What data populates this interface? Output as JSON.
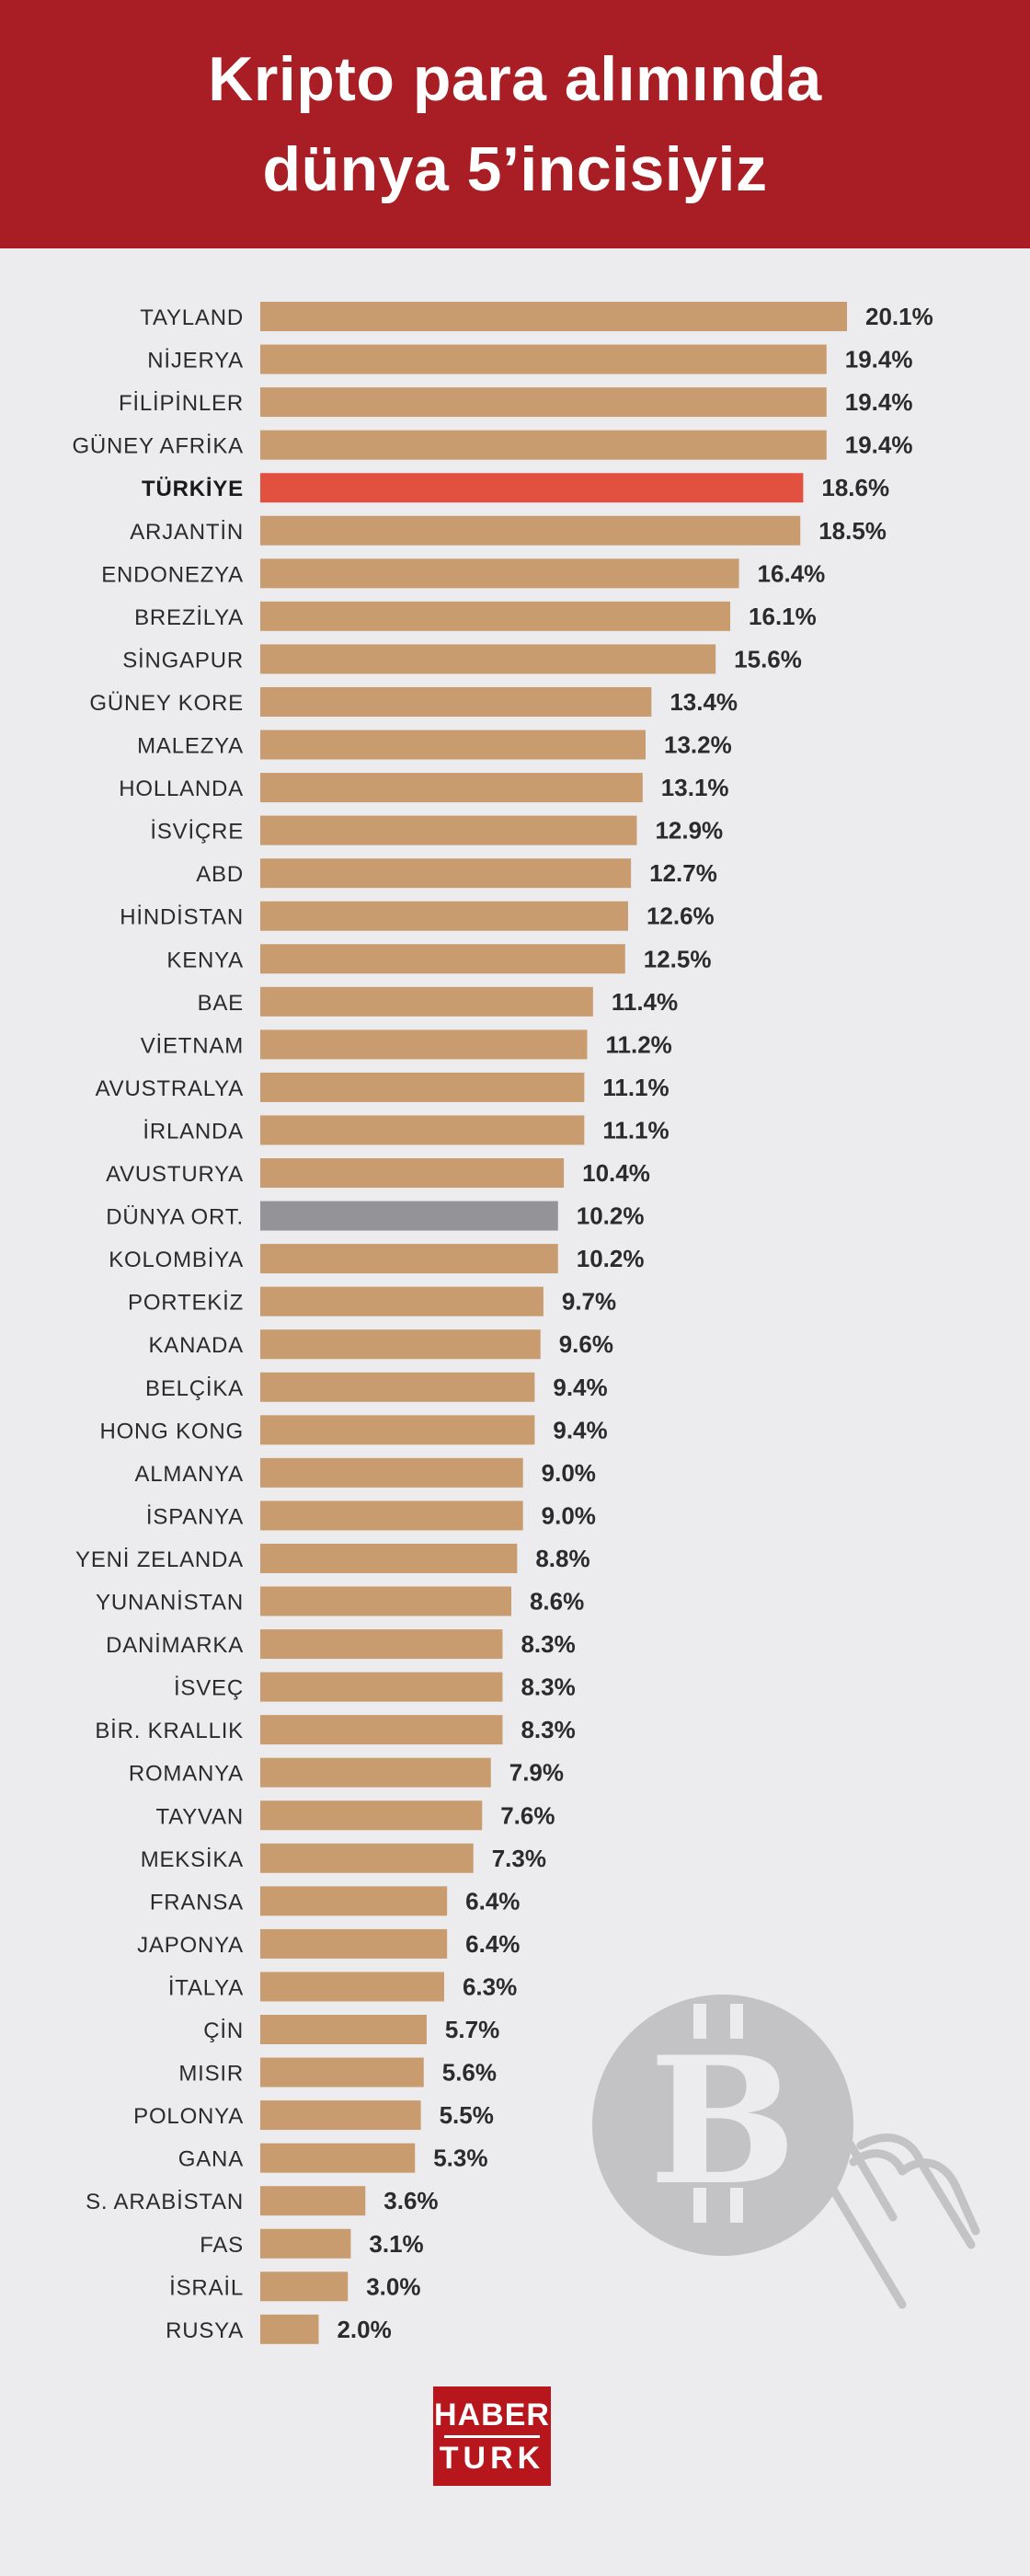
{
  "header": {
    "title_line1": "Kripto para alımında",
    "title_line2": "dünya 5’incisiyiz"
  },
  "logo": {
    "line1": "HABER",
    "line2": "TURK"
  },
  "colors": {
    "header_bg": "#a81e24",
    "bar_default": "#c89c6e",
    "bar_highlight": "#e2503f",
    "bar_average": "#939398",
    "background": "#ececee"
  },
  "icons": [
    "bitcoin-coin-icon",
    "hand-tap-icon"
  ],
  "chart_data": {
    "type": "bar",
    "orientation": "horizontal",
    "title": "Kripto para alımında dünya 5’incisiyiz",
    "value_suffix": "%",
    "highlight": "TÜRKİYE",
    "average": "DÜNYA ORT.",
    "grid": false,
    "legend": "none",
    "xlim": [
      0,
      20.1
    ],
    "categories": [
      "TAYLAND",
      "NİJERYA",
      "FİLİPİNLER",
      "GÜNEY AFRİKA",
      "TÜRKİYE",
      "ARJANTİN",
      "ENDONEZYA",
      "BREZİLYA",
      "SİNGAPUR",
      "GÜNEY KORE",
      "MALEZYA",
      "HOLLANDA",
      "İSVİÇRE",
      "ABD",
      "HİNDİSTAN",
      "KENYA",
      "BAE",
      "VİETNAM",
      "AVUSTRALYA",
      "İRLANDA",
      "AVUSTURYA",
      "DÜNYA ORT.",
      "KOLOMBİYA",
      "PORTEKİZ",
      "KANADA",
      "BELÇİKA",
      "HONG KONG",
      "ALMANYA",
      "İSPANYA",
      "YENİ ZELANDA",
      "YUNANİSTAN",
      "DANİMARKA",
      "İSVEÇ",
      "BİR. KRALLIK",
      "ROMANYA",
      "TAYVAN",
      "MEKSİKA",
      "FRANSA",
      "JAPONYA",
      "İTALYA",
      "ÇİN",
      "MISIR",
      "POLONYA",
      "GANA",
      "S. ARABİSTAN",
      "FAS",
      "İSRAİL",
      "RUSYA"
    ],
    "values": [
      20.1,
      19.4,
      19.4,
      19.4,
      18.6,
      18.5,
      16.4,
      16.1,
      15.6,
      13.4,
      13.2,
      13.1,
      12.9,
      12.7,
      12.6,
      12.5,
      11.4,
      11.2,
      11.1,
      11.1,
      10.4,
      10.2,
      10.2,
      9.7,
      9.6,
      9.4,
      9.4,
      9.0,
      9.0,
      8.8,
      8.6,
      8.3,
      8.3,
      8.3,
      7.9,
      7.6,
      7.3,
      6.4,
      6.4,
      6.3,
      5.7,
      5.6,
      5.5,
      5.3,
      3.6,
      3.1,
      3.0,
      2.0
    ],
    "value_labels": [
      "20.1%",
      "19.4%",
      "19.4%",
      "19.4%",
      "18.6%",
      "18.5%",
      "16.4%",
      "16.1%",
      "15.6%",
      "13.4%",
      "13.2%",
      "13.1%",
      "12.9%",
      "12.7%",
      "12.6%",
      "12.5%",
      "11.4%",
      "11.2%",
      "11.1%",
      "11.1%",
      "10.4%",
      "10.2%",
      "10.2%",
      "9.7%",
      "9.6%",
      "9.4%",
      "9.4%",
      "9.0%",
      "9.0%",
      "8.8%",
      "8.6%",
      "8.3%",
      "8.3%",
      "8.3%",
      "7.9%",
      "7.6%",
      "7.3%",
      "6.4%",
      "6.4%",
      "6.3%",
      "5.7%",
      "5.6%",
      "5.5%",
      "5.3%",
      "3.6%",
      "3.1%",
      "3.0%",
      "2.0%"
    ]
  }
}
